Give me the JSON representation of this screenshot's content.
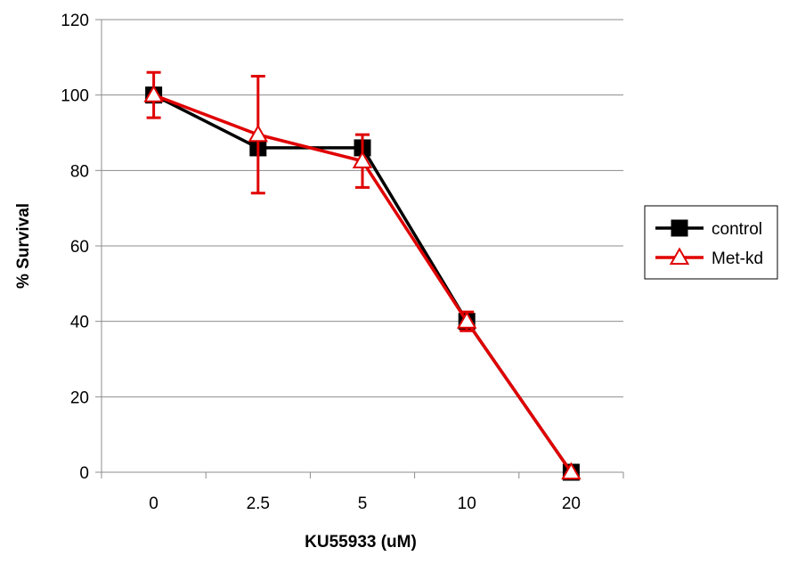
{
  "chart_data": {
    "type": "line",
    "title": "",
    "xlabel": "KU55933 (uM)",
    "ylabel": "% Survival",
    "categories": [
      "0",
      "2.5",
      "5",
      "10",
      "20"
    ],
    "ylim": [
      0,
      120
    ],
    "yticks": [
      0,
      20,
      40,
      60,
      80,
      100,
      120
    ],
    "grid": true,
    "legend": "right",
    "series": [
      {
        "name": "control",
        "color": "#000000",
        "marker": "square",
        "values": [
          100,
          86,
          86,
          40,
          0
        ]
      },
      {
        "name": "Met-kd",
        "color": "#e00000",
        "marker": "triangle",
        "values": [
          100,
          89.5,
          82.5,
          40,
          0
        ],
        "error": [
          6,
          15.5,
          7,
          2.5,
          0
        ]
      }
    ]
  }
}
